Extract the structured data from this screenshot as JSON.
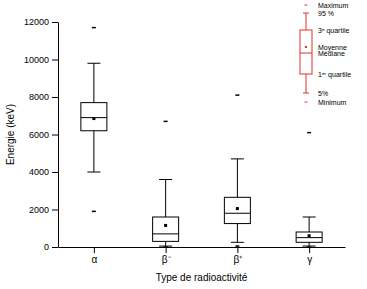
{
  "chart_data": {
    "type": "box",
    "x_label": "Type de radioactivité",
    "y_label": "Energie (keV)",
    "categories": [
      "α",
      "β⁻",
      "β⁺",
      "γ"
    ],
    "color": "#000000",
    "ylim": [
      0,
      12000
    ],
    "yticks": [
      0,
      2000,
      4000,
      6000,
      8000,
      10000,
      12000
    ],
    "min": [
      1900,
      0,
      50,
      0
    ],
    "p5": [
      4000,
      50,
      250,
      50
    ],
    "q1": [
      6200,
      300,
      1250,
      250
    ],
    "median": [
      6900,
      700,
      1800,
      500
    ],
    "mean": [
      6850,
      1150,
      2050,
      600
    ],
    "q3": [
      7700,
      1600,
      2650,
      800
    ],
    "p95": [
      9800,
      3600,
      4700,
      1600
    ],
    "max": [
      11700,
      6700,
      8100,
      6100
    ],
    "legend_labels": {
      "max": "Maximum",
      "p95": "95 %",
      "q3": "3ᵉ quartile",
      "mean": "Moyenne",
      "median": "Médiane",
      "q1": "1ᵉʳ quartile",
      "p5": "5%",
      "min": "Minimum"
    }
  }
}
